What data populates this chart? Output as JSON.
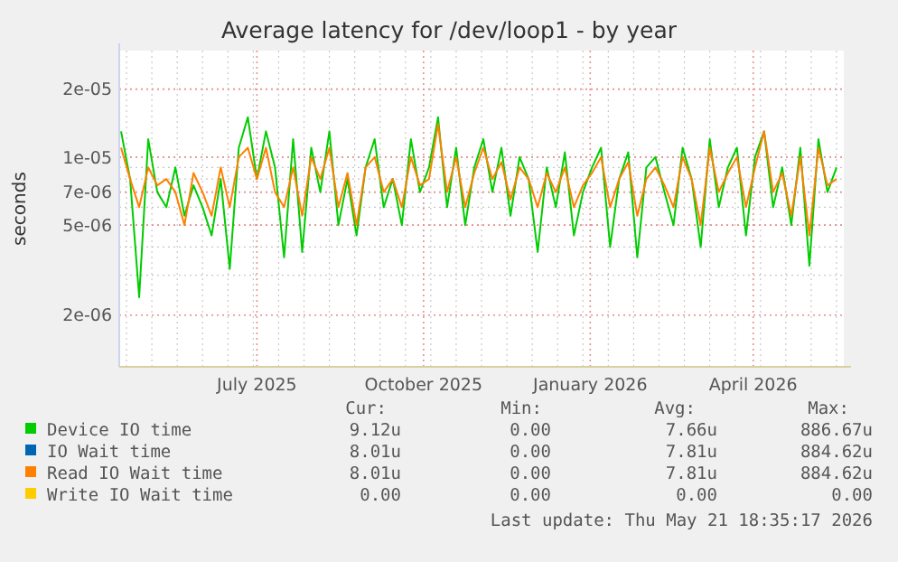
{
  "chart_data": {
    "type": "line",
    "title": "Average latency for /dev/loop1 - by year",
    "ylabel": "seconds",
    "log": true,
    "grid": true,
    "legend": "bottom",
    "marker": "none",
    "line_style": "solid",
    "xlim": [
      "2025-04-16",
      "2026-05-21"
    ],
    "xticks": [
      {
        "value": "2025-07-01",
        "label": "July 2025"
      },
      {
        "value": "2025-10-01",
        "label": "October 2025"
      },
      {
        "value": "2026-01-01",
        "label": "January 2026"
      },
      {
        "value": "2026-04-01",
        "label": "April 2026"
      }
    ],
    "ylim": [
      1.18e-06,
      2.96e-05
    ],
    "yticks": [
      {
        "value": 2e-06,
        "label": "2e-06"
      },
      {
        "value": 5e-06,
        "label": "5e-06"
      },
      {
        "value": 7e-06,
        "label": "7e-06"
      },
      {
        "value": 1e-05,
        "label": "1e-05"
      },
      {
        "value": 2e-05,
        "label": "2e-05"
      }
    ],
    "x": [
      "2025-04-17",
      "2025-04-22",
      "2025-04-27",
      "2025-05-02",
      "2025-05-07",
      "2025-05-12",
      "2025-05-17",
      "2025-05-22",
      "2025-05-27",
      "2025-06-01",
      "2025-06-06",
      "2025-06-11",
      "2025-06-16",
      "2025-06-21",
      "2025-06-26",
      "2025-07-01",
      "2025-07-06",
      "2025-07-11",
      "2025-07-16",
      "2025-07-21",
      "2025-07-26",
      "2025-07-31",
      "2025-08-05",
      "2025-08-10",
      "2025-08-15",
      "2025-08-20",
      "2025-08-25",
      "2025-08-30",
      "2025-09-04",
      "2025-09-09",
      "2025-09-14",
      "2025-09-19",
      "2025-09-24",
      "2025-09-29",
      "2025-10-04",
      "2025-10-09",
      "2025-10-14",
      "2025-10-19",
      "2025-10-24",
      "2025-10-29",
      "2025-11-03",
      "2025-11-08",
      "2025-11-13",
      "2025-11-18",
      "2025-11-23",
      "2025-11-28",
      "2025-12-03",
      "2025-12-08",
      "2025-12-13",
      "2025-12-18",
      "2025-12-23",
      "2025-12-28",
      "2026-01-02",
      "2026-01-07",
      "2026-01-12",
      "2026-01-17",
      "2026-01-22",
      "2026-01-27",
      "2026-02-01",
      "2026-02-06",
      "2026-02-11",
      "2026-02-16",
      "2026-02-21",
      "2026-02-26",
      "2026-03-03",
      "2026-03-08",
      "2026-03-13",
      "2026-03-18",
      "2026-03-23",
      "2026-03-28",
      "2026-04-02",
      "2026-04-07",
      "2026-04-12",
      "2026-04-17",
      "2026-04-22",
      "2026-04-27",
      "2026-05-02",
      "2026-05-07",
      "2026-05-12",
      "2026-05-17"
    ],
    "series": [
      {
        "name": "Device IO time",
        "color": "#00cc00",
        "values": [
          1.3e-05,
          8e-06,
          2.4e-06,
          1.2e-05,
          7e-06,
          6e-06,
          9e-06,
          5.5e-06,
          7.5e-06,
          6e-06,
          4.5e-06,
          8e-06,
          3.2e-06,
          1.1e-05,
          1.5e-05,
          8e-06,
          1.3e-05,
          9e-06,
          3.6e-06,
          1.2e-05,
          3.8e-06,
          1.1e-05,
          7e-06,
          1.3e-05,
          5e-06,
          8e-06,
          4.5e-06,
          9e-06,
          1.2e-05,
          6e-06,
          8e-06,
          5e-06,
          1.2e-05,
          7e-06,
          9e-06,
          1.5e-05,
          6e-06,
          1.1e-05,
          5e-06,
          9e-06,
          1.2e-05,
          7e-06,
          1.1e-05,
          5.5e-06,
          1e-05,
          8e-06,
          3.8e-06,
          9e-06,
          6e-06,
          1.05e-05,
          4.5e-06,
          7e-06,
          9e-06,
          1.1e-05,
          4e-06,
          8e-06,
          1.05e-05,
          3.6e-06,
          9e-06,
          1e-05,
          7e-06,
          5e-06,
          1.1e-05,
          8e-06,
          4e-06,
          1.2e-05,
          6e-06,
          9e-06,
          1.1e-05,
          4.5e-06,
          1e-05,
          1.3e-05,
          6e-06,
          9e-06,
          5e-06,
          1.1e-05,
          3.3e-06,
          1.2e-05,
          7e-06,
          9e-06
        ]
      },
      {
        "name": "IO Wait time",
        "color": "#0066b3",
        "values": [
          null,
          null,
          null,
          null,
          null,
          null,
          null,
          null,
          null,
          null,
          null,
          null,
          null,
          null,
          null,
          null,
          null,
          null,
          null,
          null,
          null,
          null,
          null,
          null,
          null,
          null,
          null,
          null,
          null,
          null,
          null,
          null,
          null,
          null,
          null,
          null,
          null,
          null,
          null,
          null,
          null,
          null,
          null,
          null,
          null,
          null,
          null,
          null,
          null,
          null,
          null,
          null,
          null,
          null,
          null,
          null,
          null,
          null,
          null,
          null,
          null,
          null,
          null,
          null,
          null,
          null,
          null,
          null,
          null,
          null,
          null,
          null,
          null,
          null,
          null,
          null,
          null,
          null,
          null,
          null
        ]
      },
      {
        "name": "Read IO Wait time",
        "color": "#ff8000",
        "values": [
          1.1e-05,
          8e-06,
          6e-06,
          9e-06,
          7.5e-06,
          8e-06,
          7e-06,
          5e-06,
          8.5e-06,
          7e-06,
          5.5e-06,
          9e-06,
          6e-06,
          1e-05,
          1.1e-05,
          8e-06,
          1.1e-05,
          7e-06,
          6e-06,
          9e-06,
          5.5e-06,
          1e-05,
          8e-06,
          1.1e-05,
          6e-06,
          8.5e-06,
          5e-06,
          9e-06,
          1e-05,
          7e-06,
          8e-06,
          6e-06,
          1e-05,
          7.5e-06,
          8e-06,
          1.4e-05,
          7e-06,
          1e-05,
          6e-06,
          8.5e-06,
          1.1e-05,
          8e-06,
          9.5e-06,
          6.5e-06,
          9e-06,
          8e-06,
          6e-06,
          8.5e-06,
          7e-06,
          9e-06,
          6e-06,
          7.5e-06,
          8.5e-06,
          1e-05,
          6e-06,
          8e-06,
          9.5e-06,
          5.5e-06,
          8e-06,
          9e-06,
          7.5e-06,
          6e-06,
          1e-05,
          8e-06,
          5e-06,
          1.1e-05,
          7e-06,
          8.5e-06,
          1e-05,
          6e-06,
          9e-06,
          1.3e-05,
          7e-06,
          8.5e-06,
          5.5e-06,
          1e-05,
          4.5e-06,
          1.1e-05,
          7.5e-06,
          8e-06
        ]
      },
      {
        "name": "Write IO Wait time",
        "color": "#ffcc00",
        "values": [
          null,
          null,
          null,
          null,
          null,
          null,
          null,
          null,
          null,
          null,
          null,
          null,
          null,
          null,
          null,
          null,
          null,
          null,
          null,
          null,
          null,
          null,
          null,
          null,
          null,
          null,
          null,
          null,
          null,
          null,
          null,
          null,
          null,
          null,
          null,
          null,
          null,
          null,
          null,
          null,
          null,
          null,
          null,
          null,
          null,
          null,
          null,
          null,
          null,
          null,
          null,
          null,
          null,
          null,
          null,
          null,
          null,
          null,
          null,
          null,
          null,
          null,
          null,
          null,
          null,
          null,
          null,
          null,
          null,
          null,
          null,
          null,
          null,
          null,
          null,
          null,
          null,
          null,
          null,
          null
        ]
      }
    ],
    "annotations": [
      "Cur:",
      "Min:",
      "Avg:",
      "Max:",
      "9.12u",
      "0.00",
      "7.66u",
      "886.67u",
      "8.01u",
      "0.00",
      "7.81u",
      "884.62u",
      "8.01u",
      "0.00",
      "7.81u",
      "884.62u",
      "0.00",
      "0.00",
      "0.00",
      "0.00",
      "Last update: Thu May 21 18:35:17 2026"
    ]
  }
}
